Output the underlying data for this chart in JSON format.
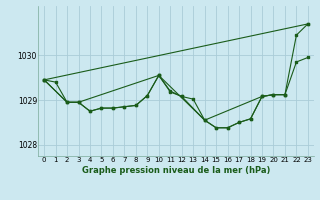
{
  "bg_color": "#cce8f0",
  "grid_color": "#aaccd8",
  "line_color": "#1a5c1a",
  "title": "Graphe pression niveau de la mer (hPa)",
  "ylim": [
    1027.75,
    1031.1
  ],
  "xlim": [
    -0.5,
    23.5
  ],
  "yticks": [
    1028,
    1029,
    1030
  ],
  "xticks": [
    0,
    1,
    2,
    3,
    4,
    5,
    6,
    7,
    8,
    9,
    10,
    11,
    12,
    13,
    14,
    15,
    16,
    17,
    18,
    19,
    20,
    21,
    22,
    23
  ],
  "series": [
    {
      "x": [
        0,
        1,
        2,
        3,
        4,
        5,
        6,
        7,
        8,
        9,
        10,
        11,
        12,
        13,
        14,
        15,
        16,
        17,
        18,
        19,
        20,
        21,
        22,
        23
      ],
      "y": [
        1029.45,
        1029.4,
        1028.95,
        1028.95,
        1028.75,
        1028.82,
        1028.82,
        1028.85,
        1028.88,
        1029.1,
        1029.55,
        1029.2,
        1029.08,
        1029.02,
        1028.55,
        1028.38,
        1028.38,
        1028.5,
        1028.58,
        1029.08,
        1029.12,
        1029.12,
        1029.85,
        1029.95
      ]
    },
    {
      "x": [
        0,
        2,
        3,
        10,
        11,
        12,
        14,
        19,
        20,
        21,
        22,
        23
      ],
      "y": [
        1029.45,
        1028.95,
        1028.95,
        1029.55,
        1029.18,
        1029.08,
        1028.55,
        1029.08,
        1029.12,
        1029.12,
        1030.45,
        1030.7
      ]
    },
    {
      "x": [
        0,
        23
      ],
      "y": [
        1029.45,
        1030.7
      ]
    },
    {
      "x": [
        0,
        2,
        3,
        4,
        5,
        6,
        7,
        8,
        9,
        10,
        14,
        15,
        16,
        17,
        18,
        19,
        20,
        21
      ],
      "y": [
        1029.45,
        1028.95,
        1028.95,
        1028.75,
        1028.82,
        1028.82,
        1028.85,
        1028.88,
        1029.1,
        1029.55,
        1028.55,
        1028.38,
        1028.38,
        1028.5,
        1028.58,
        1029.08,
        1029.12,
        1029.12
      ]
    }
  ]
}
